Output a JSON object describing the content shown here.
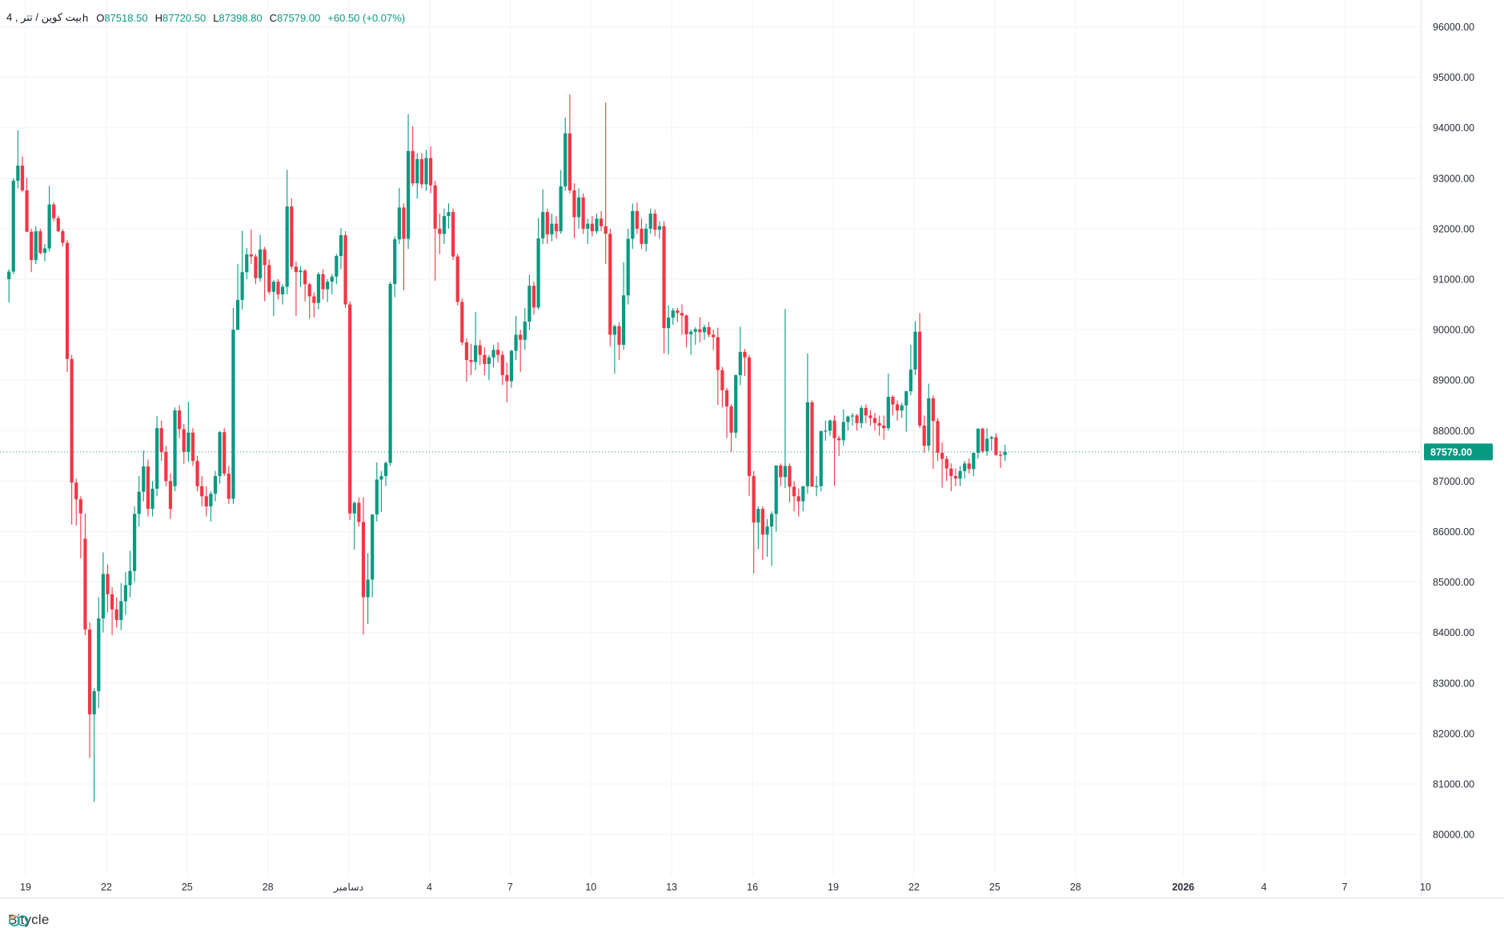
{
  "legend": {
    "symbol": "بیت کوین / تتر , 4",
    "interval_suffix": "h",
    "o_label": "O",
    "o_value": "87518.50",
    "h_label": "H",
    "h_value": "87720.50",
    "l_label": "L",
    "l_value": "87398.80",
    "c_label": "C",
    "c_value": "87579.00",
    "change": "+60.50 (+0.07%)"
  },
  "logo": {
    "text": "Bitycle"
  },
  "price_axis": {
    "min": 80000,
    "max": 96000,
    "step": 1000,
    "decimals": 2
  },
  "time_axis": {
    "ticks": [
      {
        "label": "19",
        "day": 0
      },
      {
        "label": "22",
        "day": 3
      },
      {
        "label": "25",
        "day": 6
      },
      {
        "label": "28",
        "day": 9
      },
      {
        "label": "دسامبر",
        "day": 12
      },
      {
        "label": "4",
        "day": 15
      },
      {
        "label": "7",
        "day": 18
      },
      {
        "label": "10",
        "day": 21
      },
      {
        "label": "13",
        "day": 24
      },
      {
        "label": "16",
        "day": 27
      },
      {
        "label": "19",
        "day": 30
      },
      {
        "label": "22",
        "day": 33
      },
      {
        "label": "25",
        "day": 36
      },
      {
        "label": "28",
        "day": 39
      },
      {
        "label": "2026",
        "day": 43,
        "bold": true
      },
      {
        "label": "4",
        "day": 46
      },
      {
        "label": "7",
        "day": 49
      },
      {
        "label": "10",
        "day": 52
      }
    ]
  },
  "colors": {
    "up": "#089981",
    "down": "#f23645",
    "grid": "#f0f3fa",
    "separator": "#e0e3eb",
    "axis_text": "#2a2e39",
    "price_label_bg": "#089981",
    "price_label_text": "#ffffff",
    "background": "#ffffff",
    "logo_teal": "#2aa79c",
    "logo_orange": "#f5a05a"
  },
  "chart_data": {
    "type": "candlestick",
    "interval": "4h",
    "legend_ohlc": {
      "open": 87518.5,
      "high": 87720.5,
      "low": 87398.8,
      "close": 87579.0
    },
    "last_price": 87579.0,
    "ylim": [
      79200,
      96500
    ],
    "grid": true,
    "candles_per_day": 6,
    "first_candle_day_offset": -0.62,
    "candles": [
      [
        91000,
        91200,
        90540,
        91150
      ],
      [
        91150,
        93000,
        91100,
        92950
      ],
      [
        92950,
        93950,
        92800,
        93250
      ],
      [
        93250,
        93430,
        92720,
        92760
      ],
      [
        92760,
        93010,
        91930,
        91940
      ],
      [
        91940,
        92000,
        91140,
        91380
      ],
      [
        91380,
        92050,
        91300,
        91950
      ],
      [
        91950,
        92000,
        91490,
        91520
      ],
      [
        91520,
        91700,
        91350,
        91610
      ],
      [
        91610,
        92850,
        91550,
        92480
      ],
      [
        92480,
        92520,
        92150,
        92210
      ],
      [
        92210,
        92260,
        91930,
        91950
      ],
      [
        91950,
        91990,
        91650,
        91720
      ],
      [
        91720,
        91780,
        89160,
        89420
      ],
      [
        89420,
        89500,
        86140,
        86970
      ],
      [
        86970,
        87050,
        86120,
        86640
      ],
      [
        86640,
        86700,
        85470,
        86360
      ],
      [
        85860,
        86360,
        83950,
        84060
      ],
      [
        84060,
        84200,
        81520,
        82380
      ],
      [
        82380,
        82900,
        80650,
        82840
      ],
      [
        82840,
        84700,
        82500,
        84280
      ],
      [
        84280,
        85590,
        84000,
        85160
      ],
      [
        85160,
        85350,
        84400,
        84760
      ],
      [
        84760,
        84900,
        83950,
        84460
      ],
      [
        84460,
        84700,
        84100,
        84250
      ],
      [
        84250,
        84980,
        84050,
        84620
      ],
      [
        84620,
        85200,
        84350,
        84940
      ],
      [
        84940,
        85620,
        84700,
        85220
      ],
      [
        85220,
        86500,
        85000,
        86350
      ],
      [
        86350,
        87100,
        86100,
        86790
      ],
      [
        86790,
        87600,
        86600,
        87290
      ],
      [
        87290,
        87430,
        86300,
        86450
      ],
      [
        86450,
        87000,
        86300,
        86850
      ],
      [
        86850,
        88290,
        86700,
        88050
      ],
      [
        88050,
        88200,
        87400,
        87580
      ],
      [
        87580,
        87700,
        86900,
        87000
      ],
      [
        87000,
        87150,
        86250,
        86450
      ],
      [
        86900,
        88460,
        86800,
        88400
      ],
      [
        88400,
        88500,
        87850,
        88030
      ],
      [
        88030,
        88130,
        87340,
        87580
      ],
      [
        87580,
        88570,
        87380,
        87960
      ],
      [
        87960,
        88050,
        87300,
        87400
      ],
      [
        87400,
        87500,
        86800,
        86900
      ],
      [
        86900,
        87100,
        86500,
        86700
      ],
      [
        86700,
        86900,
        86300,
        86500
      ],
      [
        86500,
        86800,
        86200,
        86750
      ],
      [
        86750,
        87200,
        86600,
        87100
      ],
      [
        87100,
        87990,
        86950,
        87970
      ],
      [
        87970,
        88050,
        87100,
        87150
      ],
      [
        87150,
        87300,
        86550,
        86650
      ],
      [
        86650,
        90430,
        86550,
        90000
      ],
      [
        90000,
        91300,
        89990,
        90590
      ],
      [
        90590,
        91960,
        90400,
        91140
      ],
      [
        91140,
        91620,
        91000,
        91490
      ],
      [
        91490,
        91980,
        91300,
        91450
      ],
      [
        91450,
        91500,
        90900,
        91020
      ],
      [
        91020,
        91880,
        90950,
        91590
      ],
      [
        91590,
        91640,
        90560,
        91280
      ],
      [
        91280,
        91390,
        90700,
        90750
      ],
      [
        90750,
        90980,
        90270,
        90950
      ],
      [
        90950,
        91000,
        90600,
        90700
      ],
      [
        90700,
        90900,
        90500,
        90850
      ],
      [
        90850,
        93170,
        90700,
        92440
      ],
      [
        92440,
        92600,
        91200,
        91250
      ],
      [
        91250,
        91350,
        90270,
        91140
      ],
      [
        91140,
        91260,
        90850,
        91170
      ],
      [
        91170,
        91200,
        90560,
        90900
      ],
      [
        90900,
        90930,
        90220,
        90660
      ],
      [
        90660,
        90740,
        90240,
        90530
      ],
      [
        90530,
        91140,
        90400,
        91100
      ],
      [
        91100,
        91200,
        90600,
        90800
      ],
      [
        90800,
        91000,
        90550,
        90950
      ],
      [
        90950,
        91100,
        90700,
        91050
      ],
      [
        91050,
        91500,
        90900,
        91460
      ],
      [
        91460,
        92010,
        91200,
        91870
      ],
      [
        91870,
        91950,
        90430,
        90500
      ],
      [
        90500,
        90560,
        86230,
        86360
      ],
      [
        86360,
        86600,
        85640,
        86570
      ],
      [
        86570,
        86680,
        86100,
        86190
      ],
      [
        86190,
        86680,
        83960,
        84700
      ],
      [
        84700,
        85570,
        84170,
        85050
      ],
      [
        85050,
        86340,
        84700,
        86340
      ],
      [
        86340,
        87370,
        86200,
        87030
      ],
      [
        87030,
        87200,
        86390,
        87100
      ],
      [
        87100,
        87390,
        86900,
        87360
      ],
      [
        87360,
        90950,
        87300,
        90905
      ],
      [
        90905,
        91850,
        90640,
        91790
      ],
      [
        91790,
        92810,
        91700,
        92420
      ],
      [
        92420,
        92500,
        90780,
        91800
      ],
      [
        91800,
        94270,
        91600,
        93540
      ],
      [
        93540,
        94030,
        92850,
        92900
      ],
      [
        92900,
        93500,
        92600,
        93380
      ],
      [
        93380,
        93500,
        92800,
        92880
      ],
      [
        92880,
        93560,
        92750,
        93400
      ],
      [
        93400,
        93630,
        92700,
        92860
      ],
      [
        92860,
        92950,
        90970,
        92000
      ],
      [
        92000,
        92300,
        91500,
        91900
      ],
      [
        91900,
        92400,
        91700,
        92250
      ],
      [
        92250,
        92500,
        92000,
        92330
      ],
      [
        92330,
        92400,
        91380,
        91450
      ],
      [
        91450,
        91500,
        90480,
        90550
      ],
      [
        90550,
        90610,
        89690,
        89750
      ],
      [
        89750,
        89830,
        88970,
        89400
      ],
      [
        89400,
        89720,
        89100,
        89360
      ],
      [
        89360,
        90350,
        89200,
        89690
      ],
      [
        89690,
        89800,
        89300,
        89500
      ],
      [
        89500,
        89650,
        89100,
        89320
      ],
      [
        89320,
        89500,
        89000,
        89450
      ],
      [
        89450,
        89700,
        89250,
        89600
      ],
      [
        89600,
        89750,
        89350,
        89500
      ],
      [
        89500,
        89580,
        88900,
        89100
      ],
      [
        89100,
        89350,
        88560,
        88980
      ],
      [
        88980,
        89600,
        88850,
        89580
      ],
      [
        89580,
        90270,
        89400,
        89900
      ],
      [
        89900,
        90000,
        89160,
        89800
      ],
      [
        89800,
        90430,
        89600,
        90160
      ],
      [
        90160,
        91090,
        90000,
        90870
      ],
      [
        90870,
        90950,
        90300,
        90440
      ],
      [
        90440,
        92210,
        90400,
        91810
      ],
      [
        91810,
        92780,
        91700,
        92330
      ],
      [
        92330,
        92400,
        91700,
        91890
      ],
      [
        91890,
        92300,
        91750,
        92100
      ],
      [
        92100,
        92250,
        91800,
        91950
      ],
      [
        91950,
        93160,
        91900,
        92840
      ],
      [
        92840,
        94200,
        92750,
        93890
      ],
      [
        93890,
        94660,
        92700,
        92760
      ],
      [
        92760,
        92900,
        91810,
        92230
      ],
      [
        92230,
        92800,
        92000,
        92620
      ],
      [
        92620,
        92700,
        91900,
        92000
      ],
      [
        92000,
        92200,
        91700,
        92100
      ],
      [
        92100,
        92250,
        91850,
        91950
      ],
      [
        91950,
        92300,
        91900,
        92200
      ],
      [
        92200,
        92350,
        91950,
        92050
      ],
      [
        92050,
        94500,
        91300,
        91900
      ],
      [
        91900,
        92000,
        89670,
        89900
      ],
      [
        89900,
        90100,
        89130,
        90070
      ],
      [
        90070,
        90150,
        89400,
        89700
      ],
      [
        89700,
        91340,
        89600,
        90680
      ],
      [
        90680,
        92000,
        90500,
        91800
      ],
      [
        91800,
        92500,
        91600,
        92350
      ],
      [
        92350,
        92520,
        91900,
        92000
      ],
      [
        92000,
        92200,
        91600,
        91700
      ],
      [
        91700,
        92100,
        91550,
        92000
      ],
      [
        92000,
        92400,
        91900,
        92300
      ],
      [
        92300,
        92380,
        91850,
        91980
      ],
      [
        91980,
        92150,
        91800,
        92050
      ],
      [
        92050,
        92150,
        89530,
        90030
      ],
      [
        90030,
        90480,
        89510,
        90240
      ],
      [
        90240,
        90430,
        90100,
        90380
      ],
      [
        90380,
        90430,
        90150,
        90330
      ],
      [
        90330,
        90500,
        89900,
        90280
      ],
      [
        90280,
        90300,
        89650,
        89910
      ],
      [
        89910,
        90000,
        89500,
        89960
      ],
      [
        89960,
        90050,
        89700,
        90010
      ],
      [
        90010,
        90250,
        89750,
        89950
      ],
      [
        89950,
        90100,
        89800,
        90050
      ],
      [
        90050,
        90150,
        89850,
        89900
      ],
      [
        89900,
        90000,
        89600,
        89850
      ],
      [
        89850,
        90040,
        88510,
        89200
      ],
      [
        89200,
        89260,
        88460,
        88800
      ],
      [
        88800,
        88850,
        87850,
        88480
      ],
      [
        88480,
        88520,
        87580,
        87960
      ],
      [
        87960,
        89110,
        87850,
        89100
      ],
      [
        89100,
        90060,
        88900,
        89560
      ],
      [
        89560,
        89620,
        89080,
        89450
      ],
      [
        89450,
        89500,
        86710,
        87100
      ],
      [
        87100,
        87200,
        85170,
        86180
      ],
      [
        86180,
        86500,
        85650,
        86450
      ],
      [
        86450,
        86500,
        85440,
        85940
      ],
      [
        85940,
        86250,
        85500,
        86100
      ],
      [
        86100,
        86400,
        85320,
        86350
      ],
      [
        86350,
        87310,
        86000,
        87310
      ],
      [
        87310,
        87350,
        86900,
        87080
      ],
      [
        87080,
        90410,
        86860,
        87300
      ],
      [
        87300,
        87350,
        86580,
        86890
      ],
      [
        86890,
        87000,
        86400,
        86700
      ],
      [
        86700,
        86850,
        86300,
        86600
      ],
      [
        86600,
        86900,
        86400,
        86900
      ],
      [
        86900,
        89530,
        86750,
        88560
      ],
      [
        88560,
        88600,
        86890,
        86890
      ],
      [
        86890,
        87100,
        86700,
        86900
      ],
      [
        86900,
        88000,
        86800,
        87990
      ],
      [
        87990,
        88200,
        87800,
        88000
      ],
      [
        88000,
        88220,
        87900,
        88200
      ],
      [
        88200,
        88300,
        86910,
        87850
      ],
      [
        87850,
        87900,
        87500,
        87810
      ],
      [
        87810,
        88420,
        87700,
        88170
      ],
      [
        88170,
        88300,
        88000,
        88280
      ],
      [
        88280,
        88350,
        88100,
        88300
      ],
      [
        88300,
        88330,
        88000,
        88150
      ],
      [
        88150,
        88500,
        88050,
        88450
      ],
      [
        88450,
        88520,
        88150,
        88300
      ],
      [
        88300,
        88400,
        88100,
        88250
      ],
      [
        88250,
        88350,
        88000,
        88150
      ],
      [
        88150,
        88300,
        87900,
        88100
      ],
      [
        88100,
        88300,
        87820,
        88050
      ],
      [
        88050,
        89130,
        88000,
        88670
      ],
      [
        88670,
        88700,
        88300,
        88520
      ],
      [
        88520,
        88600,
        88200,
        88400
      ],
      [
        88400,
        88550,
        88250,
        88500
      ],
      [
        88500,
        88790,
        87980,
        88780
      ],
      [
        88780,
        89700,
        88700,
        89210
      ],
      [
        89210,
        90170,
        89100,
        89960
      ],
      [
        89960,
        90330,
        88050,
        88100
      ],
      [
        88100,
        88300,
        87560,
        87700
      ],
      [
        87700,
        88930,
        87600,
        88640
      ],
      [
        88640,
        88700,
        87240,
        88190
      ],
      [
        88190,
        88250,
        87400,
        87560
      ],
      [
        87560,
        87760,
        86870,
        87440
      ],
      [
        87440,
        87500,
        87000,
        87250
      ],
      [
        87250,
        87350,
        86800,
        87100
      ],
      [
        87100,
        87250,
        86900,
        87050
      ],
      [
        87050,
        87300,
        86900,
        87200
      ],
      [
        87200,
        87400,
        87050,
        87350
      ],
      [
        87350,
        87450,
        87150,
        87240
      ],
      [
        87240,
        87560,
        87100,
        87560
      ],
      [
        87560,
        88040,
        87450,
        88040
      ],
      [
        88040,
        88060,
        87560,
        87590
      ],
      [
        87590,
        88050,
        87500,
        87840
      ],
      [
        87840,
        87900,
        87600,
        87870
      ],
      [
        87870,
        87950,
        87500,
        87520
      ],
      [
        87520,
        87600,
        87260,
        87518
      ],
      [
        87518,
        87720.5,
        87398.8,
        87579
      ]
    ]
  }
}
